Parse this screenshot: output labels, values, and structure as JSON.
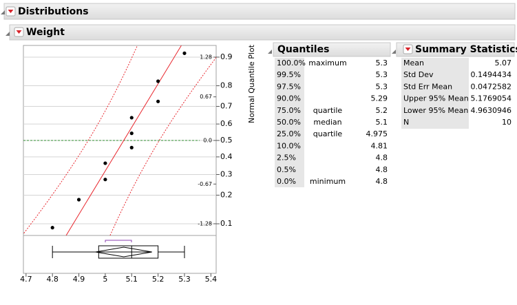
{
  "header": {
    "title": "Distributions"
  },
  "panel": {
    "title": "Weight"
  },
  "chart_data": {
    "type": "normal-quantile",
    "y_label": "Normal Quantile Plot",
    "x": [
      4.8,
      4.9,
      5.0,
      5.0,
      5.1,
      5.1,
      5.1,
      5.2,
      5.2,
      5.3
    ],
    "values": [
      -1.34,
      -0.91,
      -0.6,
      -0.35,
      -0.11,
      0.11,
      0.35,
      0.6,
      0.91,
      1.34
    ],
    "point_color": "#000000",
    "line_color": "#e8242b",
    "xlim": [
      4.69,
      5.42
    ],
    "xticks": [
      4.7,
      4.8,
      4.9,
      5,
      5.1,
      5.2,
      5.3,
      5.4
    ],
    "ylim": [
      -1.46,
      1.46
    ],
    "yticks": [
      1.28,
      0.67,
      {
        "value": 0,
        "label": "0.0"
      },
      -0.67,
      -1.28
    ],
    "y2lim": [
      0.072,
      0.928
    ],
    "y2ticks": [
      0.1,
      0.2,
      0.3,
      0.4,
      0.5,
      0.6,
      0.7,
      0.8,
      0.9
    ],
    "y2scale": "normal-quantile",
    "grid": true
  },
  "quantiles": {
    "title": "Quantiles",
    "rows": [
      {
        "level": "100.0%",
        "label": "maximum",
        "value": 5.3
      },
      {
        "level": "99.5%",
        "value": 5.3
      },
      {
        "level": "97.5%",
        "value": 5.3
      },
      {
        "level": "90.0%",
        "value": 5.29
      },
      {
        "level": "75.0%",
        "label": "quartile",
        "value": 5.2
      },
      {
        "level": "50.0%",
        "label": "median",
        "value": 5.1
      },
      {
        "level": "25.0%",
        "label": "quartile",
        "value": 4.975
      },
      {
        "level": "10.0%",
        "value": 4.81
      },
      {
        "level": "2.5%",
        "value": 4.8
      },
      {
        "level": "0.5%",
        "value": 4.8
      },
      {
        "level": "0.0%",
        "label": "minimum",
        "value": 4.8
      }
    ]
  },
  "summary": {
    "title": "Summary Statistics",
    "rows": [
      {
        "label": "Mean",
        "value": 5.07
      },
      {
        "label": "Std Dev",
        "value": 0.1494434
      },
      {
        "label": "Std Err Mean",
        "value": 0.0472582
      },
      {
        "label": "Upper 95% Mean",
        "value": 5.1769054
      },
      {
        "label": "Lower 95% Mean",
        "value": 4.9630946
      },
      {
        "label": "N",
        "value": 10
      }
    ]
  }
}
